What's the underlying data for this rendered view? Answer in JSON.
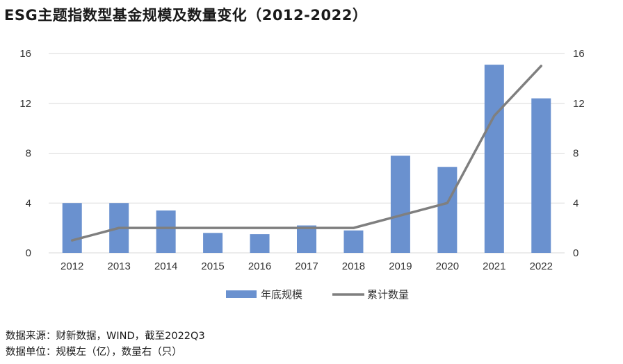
{
  "title": "ESG主题指数型基金规模及数量变化（2012-2022）",
  "colors": {
    "bar": "#6a91cf",
    "line": "#7f7f7f",
    "grid": "#d9d9d9"
  },
  "chart_data": {
    "type": "bar+line",
    "categories": [
      "2012",
      "2013",
      "2014",
      "2015",
      "2016",
      "2017",
      "2018",
      "2019",
      "2020",
      "2021",
      "2022"
    ],
    "series": [
      {
        "name": "年底规模",
        "kind": "bar",
        "axis": "left",
        "values": [
          4.0,
          4.0,
          3.4,
          1.6,
          1.5,
          2.2,
          1.8,
          7.8,
          6.9,
          15.1,
          12.4
        ]
      },
      {
        "name": "累计数量",
        "kind": "line",
        "axis": "right",
        "values": [
          1,
          2,
          2,
          2,
          2,
          2,
          2,
          3,
          4,
          11,
          15
        ]
      }
    ],
    "yleft": {
      "min": 0,
      "max": 16,
      "ticks": [
        0,
        4,
        8,
        12,
        16
      ]
    },
    "yright": {
      "min": 0,
      "max": 16,
      "ticks": [
        0,
        4,
        8,
        12,
        16
      ]
    },
    "legend": "bottom"
  },
  "notes": {
    "source": "数据来源：财新数据，WIND，截至2022Q3",
    "unit": "数据单位：规模左（亿），数量右（只）"
  }
}
